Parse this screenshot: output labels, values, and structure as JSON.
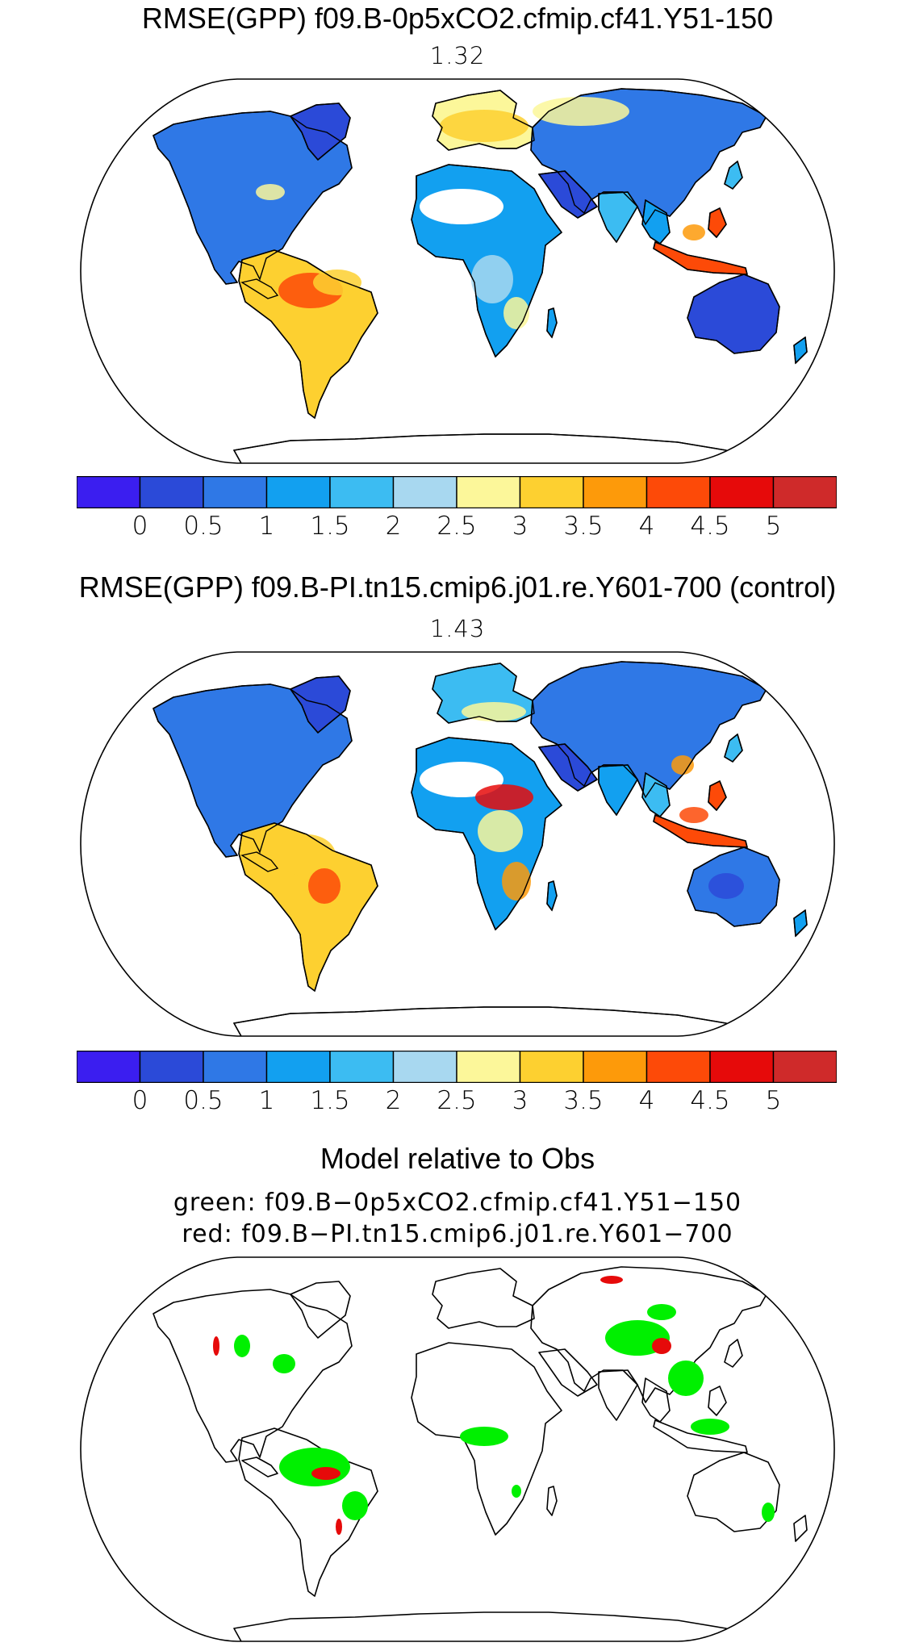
{
  "panels": [
    {
      "title": "RMSE(GPP) f09.B-0p5xCO2.cfmip.cf41.Y51-150",
      "value": "1.32",
      "variant": "a"
    },
    {
      "title": "RMSE(GPP) f09.B-PI.tn15.cmip6.j01.re.Y601-700 (control)",
      "value": "1.43",
      "variant": "b"
    }
  ],
  "colorbar": {
    "colors": [
      "#3b1ef0",
      "#2b4ad8",
      "#2f78e6",
      "#12a0f0",
      "#3cbcf2",
      "#a8d8f0",
      "#fcf79a",
      "#fdd030",
      "#fd9a0a",
      "#fd4a08",
      "#e60a0a",
      "#cf2a2a"
    ],
    "tick_labels": [
      "0",
      "0.5",
      "1",
      "1.5",
      "2",
      "2.5",
      "3",
      "3.5",
      "4",
      "4.5",
      "5"
    ]
  },
  "comparison": {
    "title": "Model relative to Obs",
    "green_label": "green: f09.B−0p5xCO2.cfmip.cf41.Y51−150",
    "red_label": "red: f09.B−PI.tn15.cmip6.j01.re.Y601−700",
    "green_color": "#00f000",
    "red_color": "#e60a0a"
  }
}
